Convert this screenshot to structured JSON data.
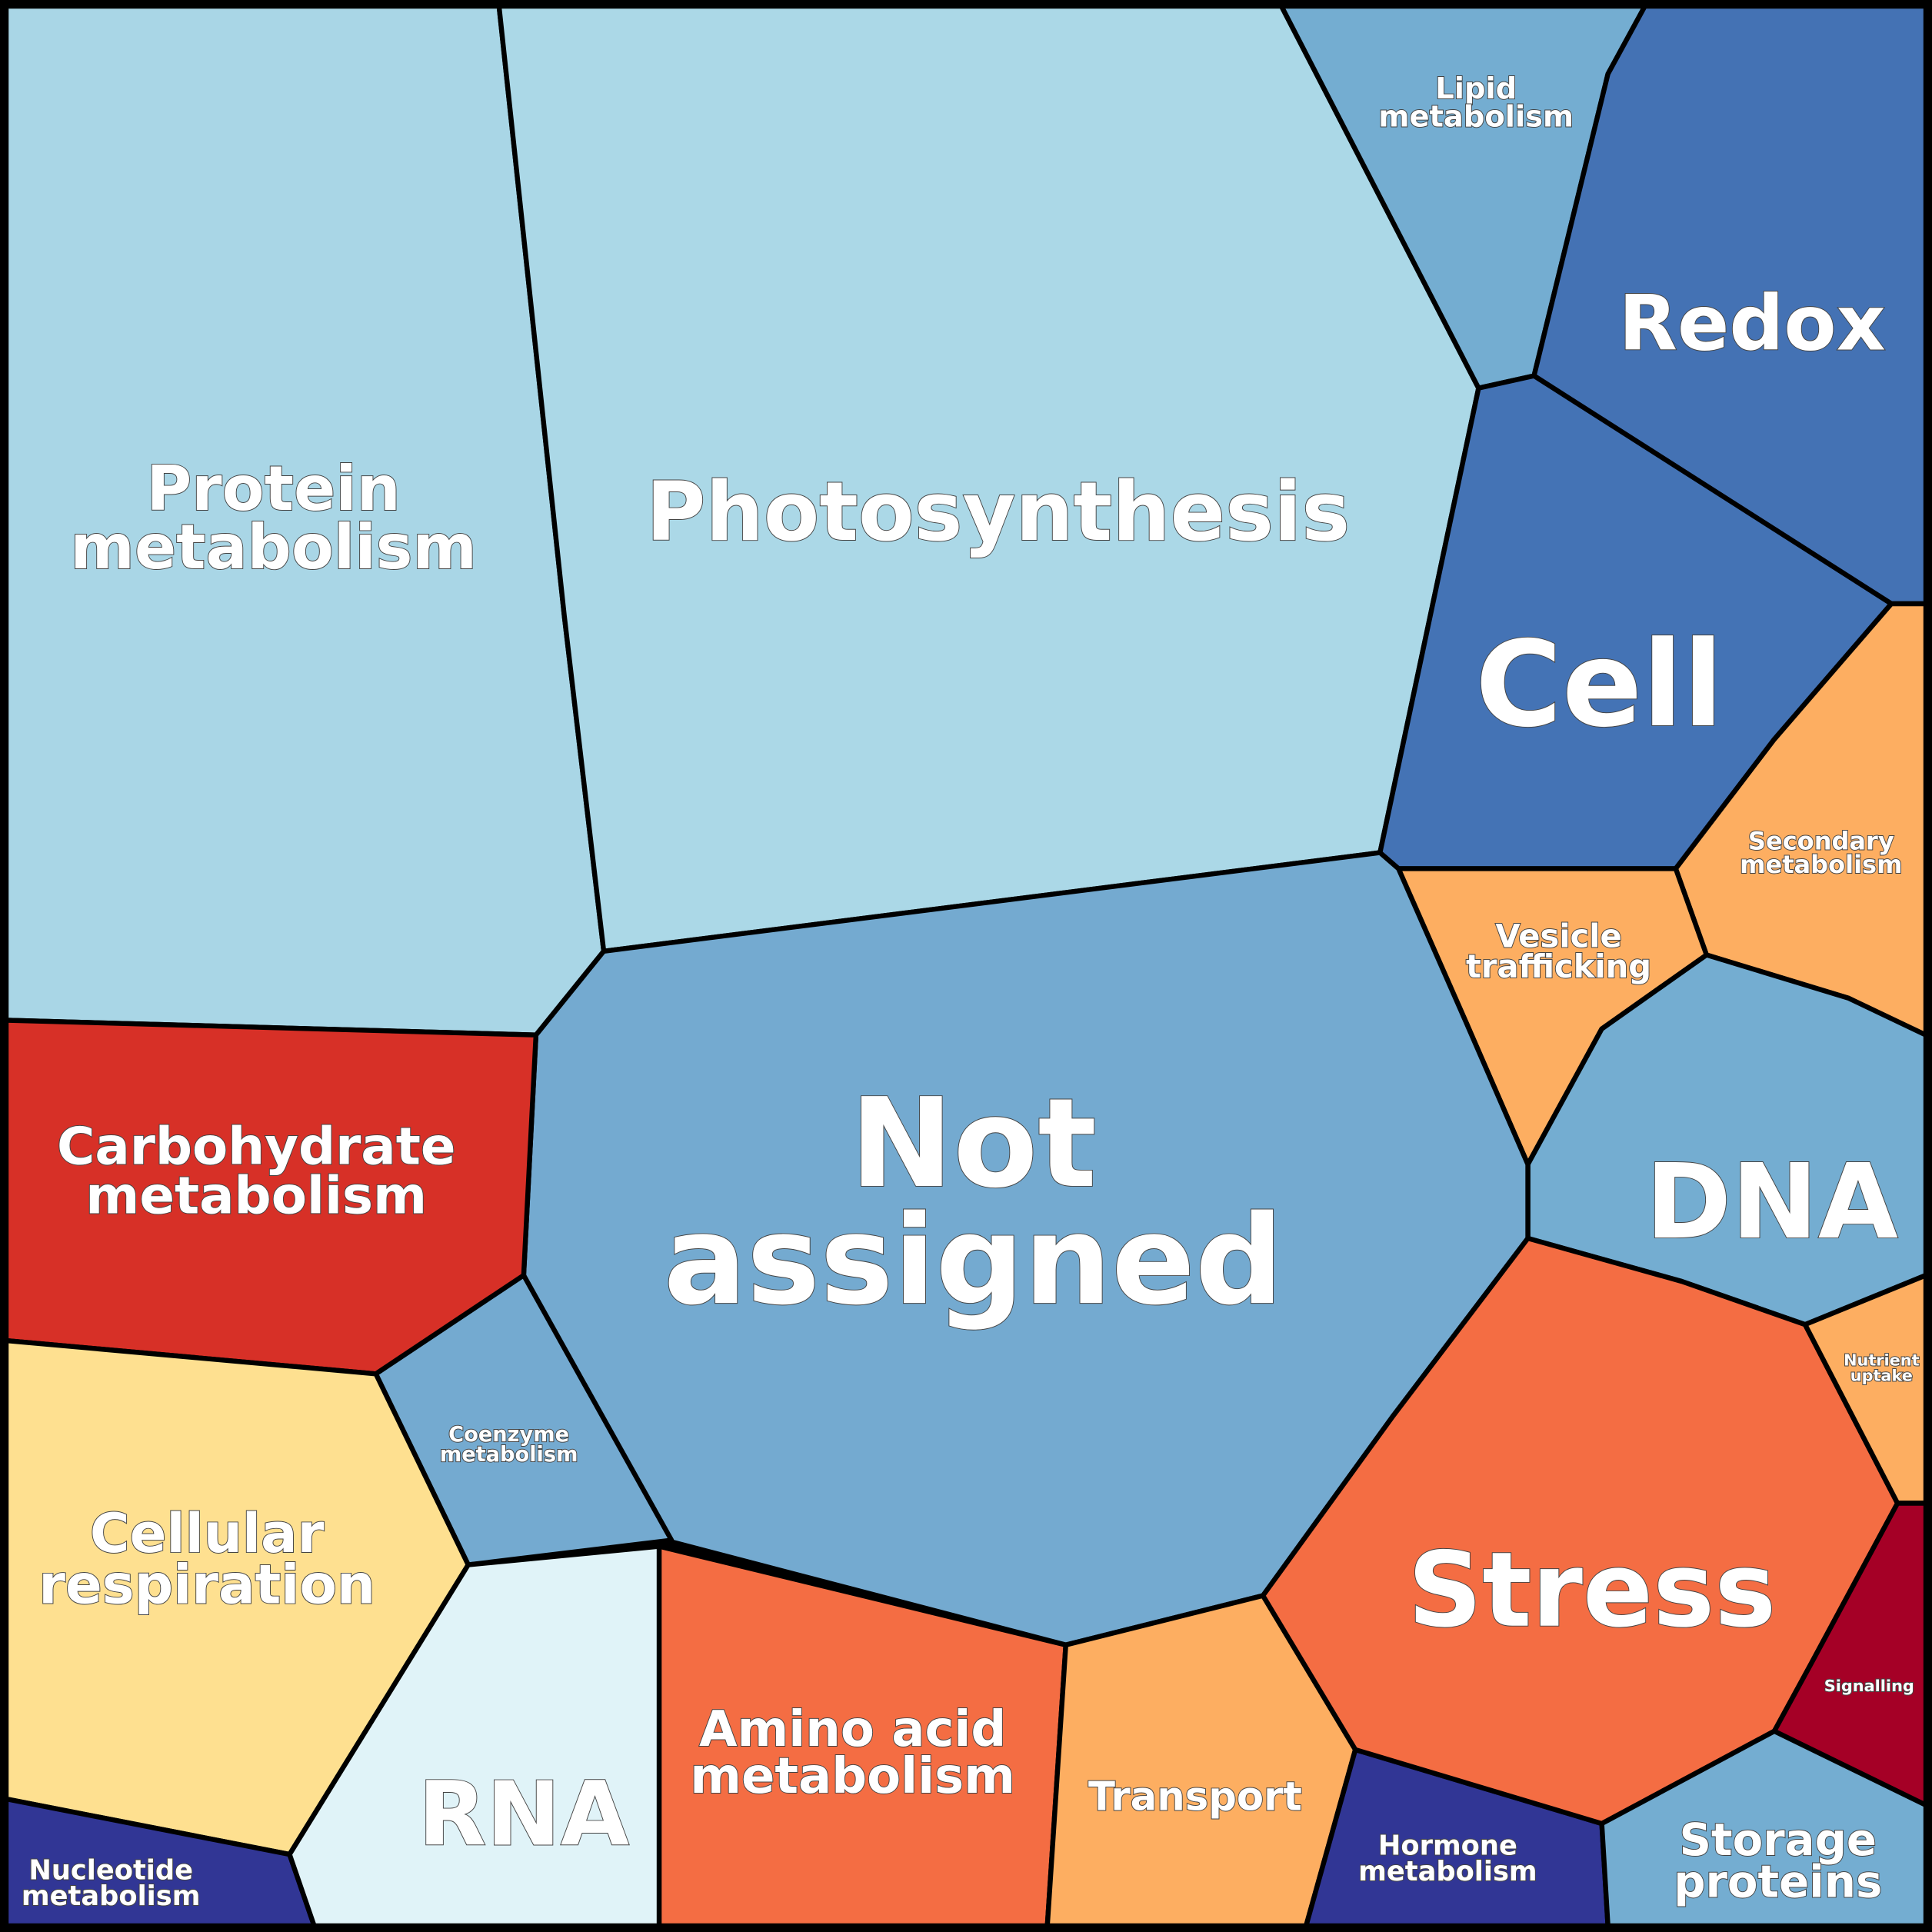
{
  "regions": [
    {
      "id": "protein",
      "label": [
        "Protein",
        "metabolism"
      ],
      "color": "#a9d6e6"
    },
    {
      "id": "photo",
      "label": [
        "Photosynthesis"
      ],
      "color": "#abd8e7"
    },
    {
      "id": "lipid",
      "label": [
        "Lipid",
        "metabolism"
      ],
      "color": "#74add1"
    },
    {
      "id": "redox",
      "label": [
        "Redox"
      ],
      "color": "#4472b4"
    },
    {
      "id": "cell",
      "label": [
        "Cell"
      ],
      "color": "#4473b5"
    },
    {
      "id": "secondary",
      "label": [
        "Secondary",
        "metabolism"
      ],
      "color": "#fdae61"
    },
    {
      "id": "vesicle",
      "label": [
        "Vesicle",
        "trafficking"
      ],
      "color": "#fdae61"
    },
    {
      "id": "dna",
      "label": [
        "DNA"
      ],
      "color": "#74add1"
    },
    {
      "id": "notassigned",
      "label": [
        "Not",
        "assigned"
      ],
      "color": "#74aad0"
    },
    {
      "id": "coenzyme",
      "label": [
        "Coenzyme",
        "metabolism"
      ],
      "color": "#74aad0"
    },
    {
      "id": "carb",
      "label": [
        "Carbohydrate",
        "metabolism"
      ],
      "color": "#d73027"
    },
    {
      "id": "resp",
      "label": [
        "Cellular",
        "respiration"
      ],
      "color": "#fee090"
    },
    {
      "id": "nucleotide",
      "label": [
        "Nucleotide",
        "metabolism"
      ],
      "color": "#313695"
    },
    {
      "id": "rna",
      "label": [
        "RNA"
      ],
      "color": "#e0f3f8"
    },
    {
      "id": "amino",
      "label": [
        "Amino acid",
        "metabolism"
      ],
      "color": "#f46d43"
    },
    {
      "id": "transport",
      "label": [
        "Transport"
      ],
      "color": "#fdae61"
    },
    {
      "id": "hormone",
      "label": [
        "Hormone",
        "metabolism"
      ],
      "color": "#313695"
    },
    {
      "id": "stress",
      "label": [
        "Stress"
      ],
      "color": "#f46d43"
    },
    {
      "id": "nutrient",
      "label": [
        "Nutrient",
        "uptake"
      ],
      "color": "#fdae61"
    },
    {
      "id": "signalling",
      "label": [
        "Signalling"
      ],
      "color": "#a50026"
    },
    {
      "id": "storage",
      "label": [
        "Storage",
        "proteins"
      ],
      "color": "#74add1"
    }
  ]
}
